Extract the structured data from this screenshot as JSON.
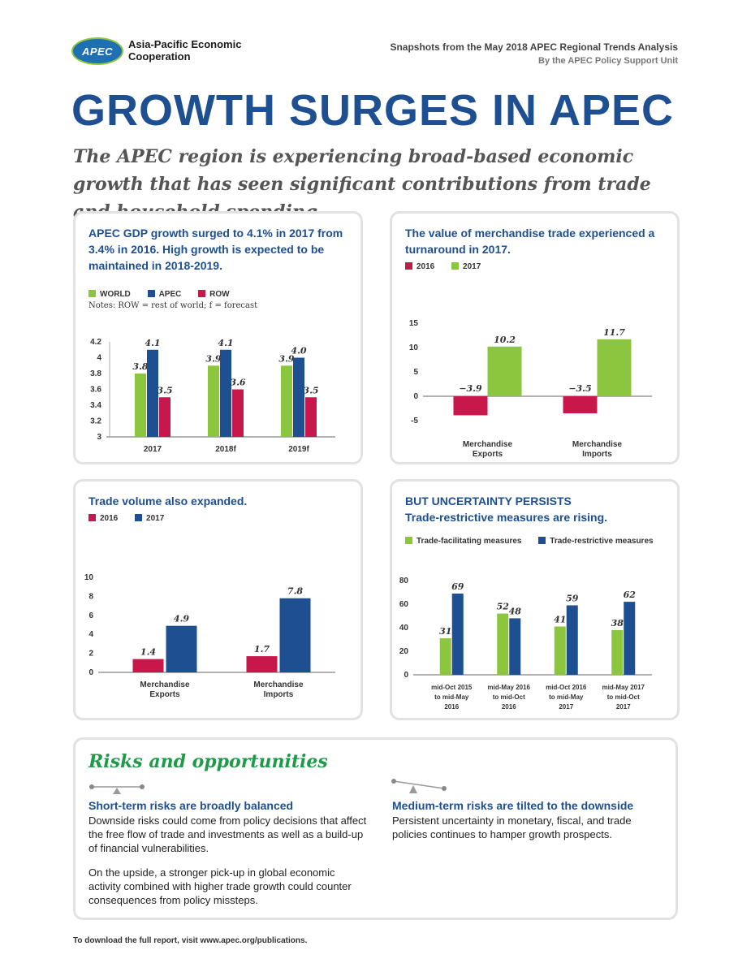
{
  "header": {
    "logo_text": "APEC",
    "org_name": "Asia-Pacific Economic Cooperation",
    "snapshot_line": "Snapshots from the May 2018 APEC Regional Trends Analysis",
    "by_line": "By the APEC Policy Support Unit"
  },
  "title": "GROWTH SURGES IN APEC",
  "subtitle": "The APEC region is experiencing broad-based economic growth that has seen significant contributions from trade and household spending.",
  "colors": {
    "green": "#8cc63f",
    "blue": "#1d4f91",
    "red": "#c8174a",
    "title_blue": "#1d4f91",
    "risk_green": "#1f9a48"
  },
  "panels": {
    "gdp": {
      "title": "APEC GDP growth surged to 4.1% in 2017 from 3.4% in 2016. High growth is expected to be maintained in 2018-2019.",
      "note": "Notes: ROW = rest of world; f = forecast"
    },
    "merch": {
      "title": "The value of merchandise trade experienced a turnaround in 2017."
    },
    "volume": {
      "title": "Trade volume also expanded."
    },
    "uncert": {
      "title1": "BUT UNCERTAINTY PERSISTS",
      "title2": "Trade-restrictive measures are rising."
    }
  },
  "chart_data": [
    {
      "type": "bar",
      "categories": [
        "2017",
        "2018f",
        "2019f"
      ],
      "series": [
        {
          "name": "WORLD",
          "color": "#8cc63f",
          "values": [
            3.8,
            3.9,
            3.9
          ]
        },
        {
          "name": "APEC",
          "color": "#1d4f91",
          "values": [
            4.1,
            4.1,
            4.0
          ]
        },
        {
          "name": "ROW",
          "color": "#c8174a",
          "values": [
            3.5,
            3.6,
            3.5
          ]
        }
      ],
      "value_labels": [
        "3.8",
        "3.9",
        "3.9",
        "4.1",
        "4.1",
        "4.0",
        "3.5",
        "3.6",
        "3.5"
      ],
      "yticks": [
        "3",
        "3.2",
        "3.4",
        "3.6",
        "3.8",
        "4",
        "4.2"
      ],
      "ylim": [
        3,
        4.2
      ]
    },
    {
      "type": "bar",
      "categories": [
        "Merchandise Exports",
        "Merchandise Imports"
      ],
      "series": [
        {
          "name": "2016",
          "color": "#c8174a",
          "values": [
            -3.9,
            -3.5
          ]
        },
        {
          "name": "2017",
          "color": "#8cc63f",
          "values": [
            10.2,
            11.7
          ]
        }
      ],
      "value_labels": [
        "−3.9",
        "−3.5",
        "10.2",
        "11.7"
      ],
      "yticks": [
        "-5",
        "0",
        "5",
        "10",
        "15"
      ],
      "ylim": [
        -5,
        15
      ]
    },
    {
      "type": "bar",
      "categories": [
        "Merchandise Exports",
        "Merchandise Imports"
      ],
      "series": [
        {
          "name": "2016",
          "color": "#c8174a",
          "values": [
            1.4,
            1.7
          ]
        },
        {
          "name": "2017",
          "color": "#1d4f91",
          "values": [
            4.9,
            7.8
          ]
        }
      ],
      "value_labels": [
        "1.4",
        "1.7",
        "4.9",
        "7.8"
      ],
      "yticks": [
        "0",
        "2",
        "4",
        "6",
        "8",
        "10"
      ],
      "ylim": [
        0,
        10
      ]
    },
    {
      "type": "bar",
      "categories": [
        "mid-Oct 2015 to mid-May 2016",
        "mid-May 2016 to mid-Oct 2016",
        "mid-Oct 2016 to mid-May 2017",
        "mid-May 2017 to mid-Oct 2017"
      ],
      "series": [
        {
          "name": "Trade-facilitating measures",
          "color": "#8cc63f",
          "values": [
            31,
            52,
            41,
            38
          ]
        },
        {
          "name": "Trade-restrictive measures",
          "color": "#1d4f91",
          "values": [
            69,
            48,
            59,
            62
          ]
        }
      ],
      "value_labels": [
        "31",
        "52",
        "41",
        "38",
        "69",
        "48",
        "59",
        "62"
      ],
      "yticks": [
        "0",
        "20",
        "40",
        "60",
        "80"
      ],
      "ylim": [
        0,
        80
      ]
    }
  ],
  "risks": {
    "section_title": "Risks and opportunities",
    "short_title": "Short-term risks are broadly balanced",
    "short_p1": "Downside risks could come from policy decisions that affect the free flow of trade and investments as well as a build-up of financial vulnerabilities.",
    "short_p2": "On the upside, a stronger pick-up in global economic activity combined with higher trade growth could counter consequences from policy missteps.",
    "medium_title": "Medium-term risks are tilted to the downside",
    "medium_p1": "Persistent uncertainty in monetary, fiscal, and trade policies continues to hamper growth prospects."
  },
  "footer": "To download the full report, visit www.apec.org/publications."
}
